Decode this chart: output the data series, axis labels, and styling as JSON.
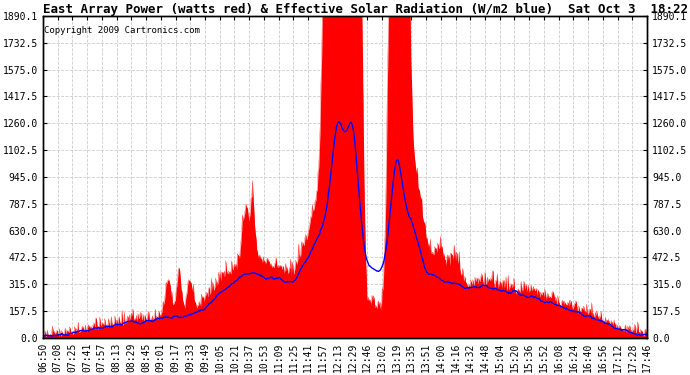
{
  "title": "East Array Power (watts red) & Effective Solar Radiation (W/m2 blue)  Sat Oct 3  18:22",
  "copyright": "Copyright 2009 Cartronics.com",
  "ymax": 1890.1,
  "yticks": [
    0.0,
    157.5,
    315.0,
    472.5,
    630.0,
    787.5,
    945.0,
    1102.5,
    1260.0,
    1417.5,
    1575.0,
    1732.5,
    1890.1
  ],
  "bg_color": "#ffffff",
  "plot_bg": "#ffffff",
  "grid_color": "#cccccc",
  "red_color": "#ff0000",
  "blue_color": "#0000ff",
  "title_fontsize": 9,
  "tick_fontsize": 7,
  "x_label_rotation": 90,
  "x_tick_labels": [
    "06:50",
    "07:08",
    "07:25",
    "07:41",
    "07:57",
    "08:13",
    "08:29",
    "08:45",
    "09:01",
    "09:17",
    "09:33",
    "09:49",
    "10:05",
    "10:21",
    "10:37",
    "10:53",
    "11:09",
    "11:25",
    "11:41",
    "11:57",
    "12:13",
    "12:29",
    "12:46",
    "13:02",
    "13:19",
    "13:35",
    "13:51",
    "14:00",
    "14:16",
    "14:32",
    "14:48",
    "15:04",
    "15:20",
    "15:36",
    "15:52",
    "16:08",
    "16:24",
    "16:40",
    "16:56",
    "17:12",
    "17:28",
    "17:46"
  ]
}
